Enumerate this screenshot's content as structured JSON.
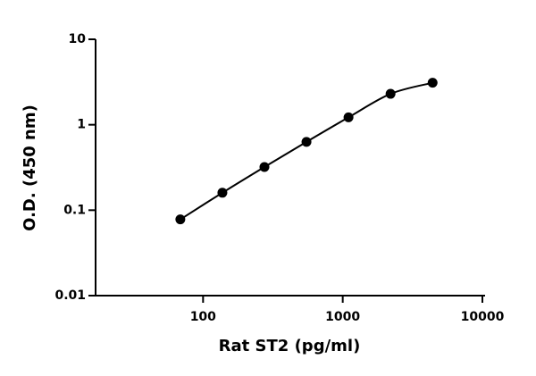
{
  "chart_data": {
    "type": "scatter",
    "xlabel": "Rat ST2 (pg/ml)",
    "ylabel": "O.D. (450 nm)",
    "x": [
      68.75,
      137.5,
      275,
      550,
      1100,
      2200,
      4400
    ],
    "values": [
      0.078,
      0.16,
      0.32,
      0.63,
      1.22,
      2.3,
      3.1
    ],
    "color": "#000000",
    "curve": true,
    "xlog": true,
    "ylog": true,
    "xlim": [
      17,
      10000
    ],
    "xticks": [
      100,
      1000,
      10000
    ],
    "ylim": [
      0.01,
      10
    ],
    "yticks": [
      10,
      1,
      0.1,
      0.01
    ]
  }
}
